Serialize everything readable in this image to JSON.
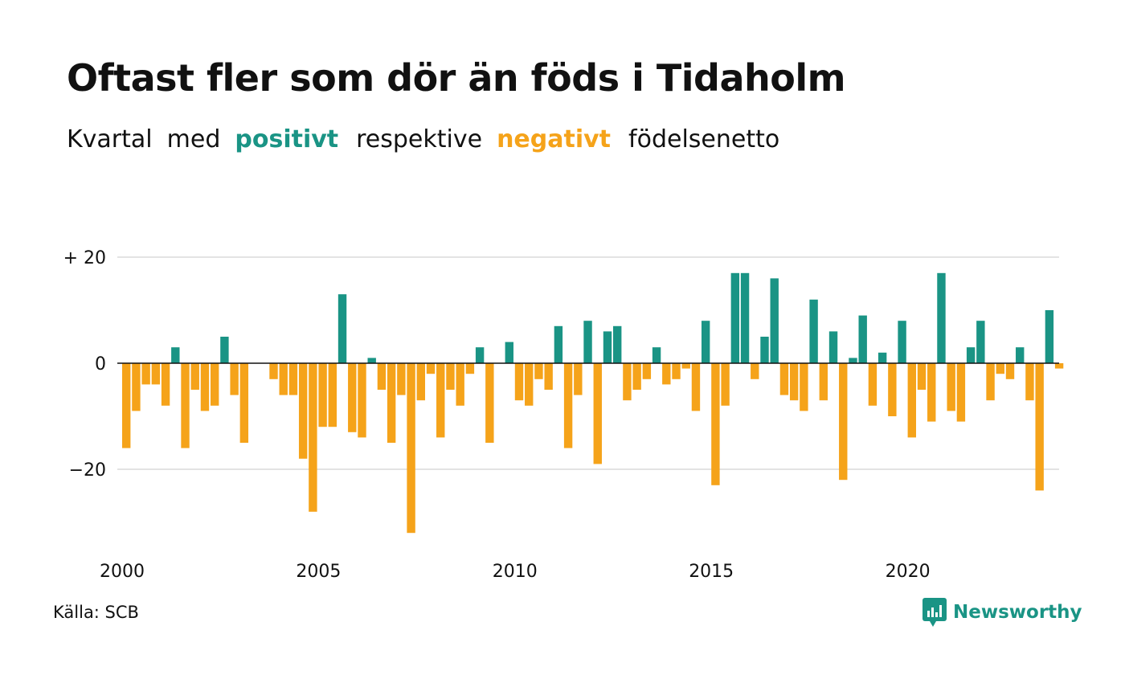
{
  "title": "Oftast fler som dör än föds i Tidaholm",
  "subtitle": {
    "part1": "Kvartal",
    "part2": "med",
    "positive": "positivt",
    "part3": "respektive",
    "negative": "negativt",
    "part4": "födelsenetto"
  },
  "source": "Källa: SCB",
  "brand": "Newsworthy",
  "colors": {
    "positive": "#1a9485",
    "negative": "#f5a31a",
    "grid": "#e3e3e3",
    "zero": "#111111"
  },
  "chart_data": {
    "type": "bar",
    "ylim": [
      -32,
      20
    ],
    "yticks": [
      {
        "value": 20,
        "label": "+ 20"
      },
      {
        "value": 0,
        "label": "0"
      },
      {
        "value": -20,
        "label": "−20"
      }
    ],
    "xticks": [
      {
        "year": 2000,
        "label": "2000"
      },
      {
        "year": 2005,
        "label": "2005"
      },
      {
        "year": 2010,
        "label": "2010"
      },
      {
        "year": 2015,
        "label": "2015"
      },
      {
        "year": 2020,
        "label": "2020"
      }
    ],
    "start_quarter": "2000 Q1",
    "values": [
      -16,
      -9,
      -4,
      -4,
      -8,
      3,
      -16,
      -5,
      -9,
      -8,
      5,
      -6,
      -15,
      0,
      0,
      -3,
      -6,
      -6,
      -18,
      -28,
      -12,
      -12,
      13,
      -13,
      -14,
      1,
      -5,
      -15,
      -6,
      -32,
      -7,
      -2,
      -14,
      -5,
      -8,
      -2,
      3,
      -15,
      0,
      4,
      -7,
      -8,
      -3,
      -5,
      7,
      -16,
      -6,
      8,
      -19,
      6,
      7,
      -7,
      -5,
      -3,
      3,
      -4,
      -3,
      -1,
      -9,
      8,
      -23,
      -8,
      17,
      17,
      -3,
      5,
      16,
      -6,
      -7,
      -9,
      12,
      -7,
      6,
      -22,
      1,
      9,
      -8,
      2,
      -10,
      8,
      -14,
      -5,
      -11,
      17,
      -9,
      -11,
      3,
      8,
      -7,
      -2,
      -3,
      3,
      -7,
      -24,
      10,
      -1
    ]
  }
}
